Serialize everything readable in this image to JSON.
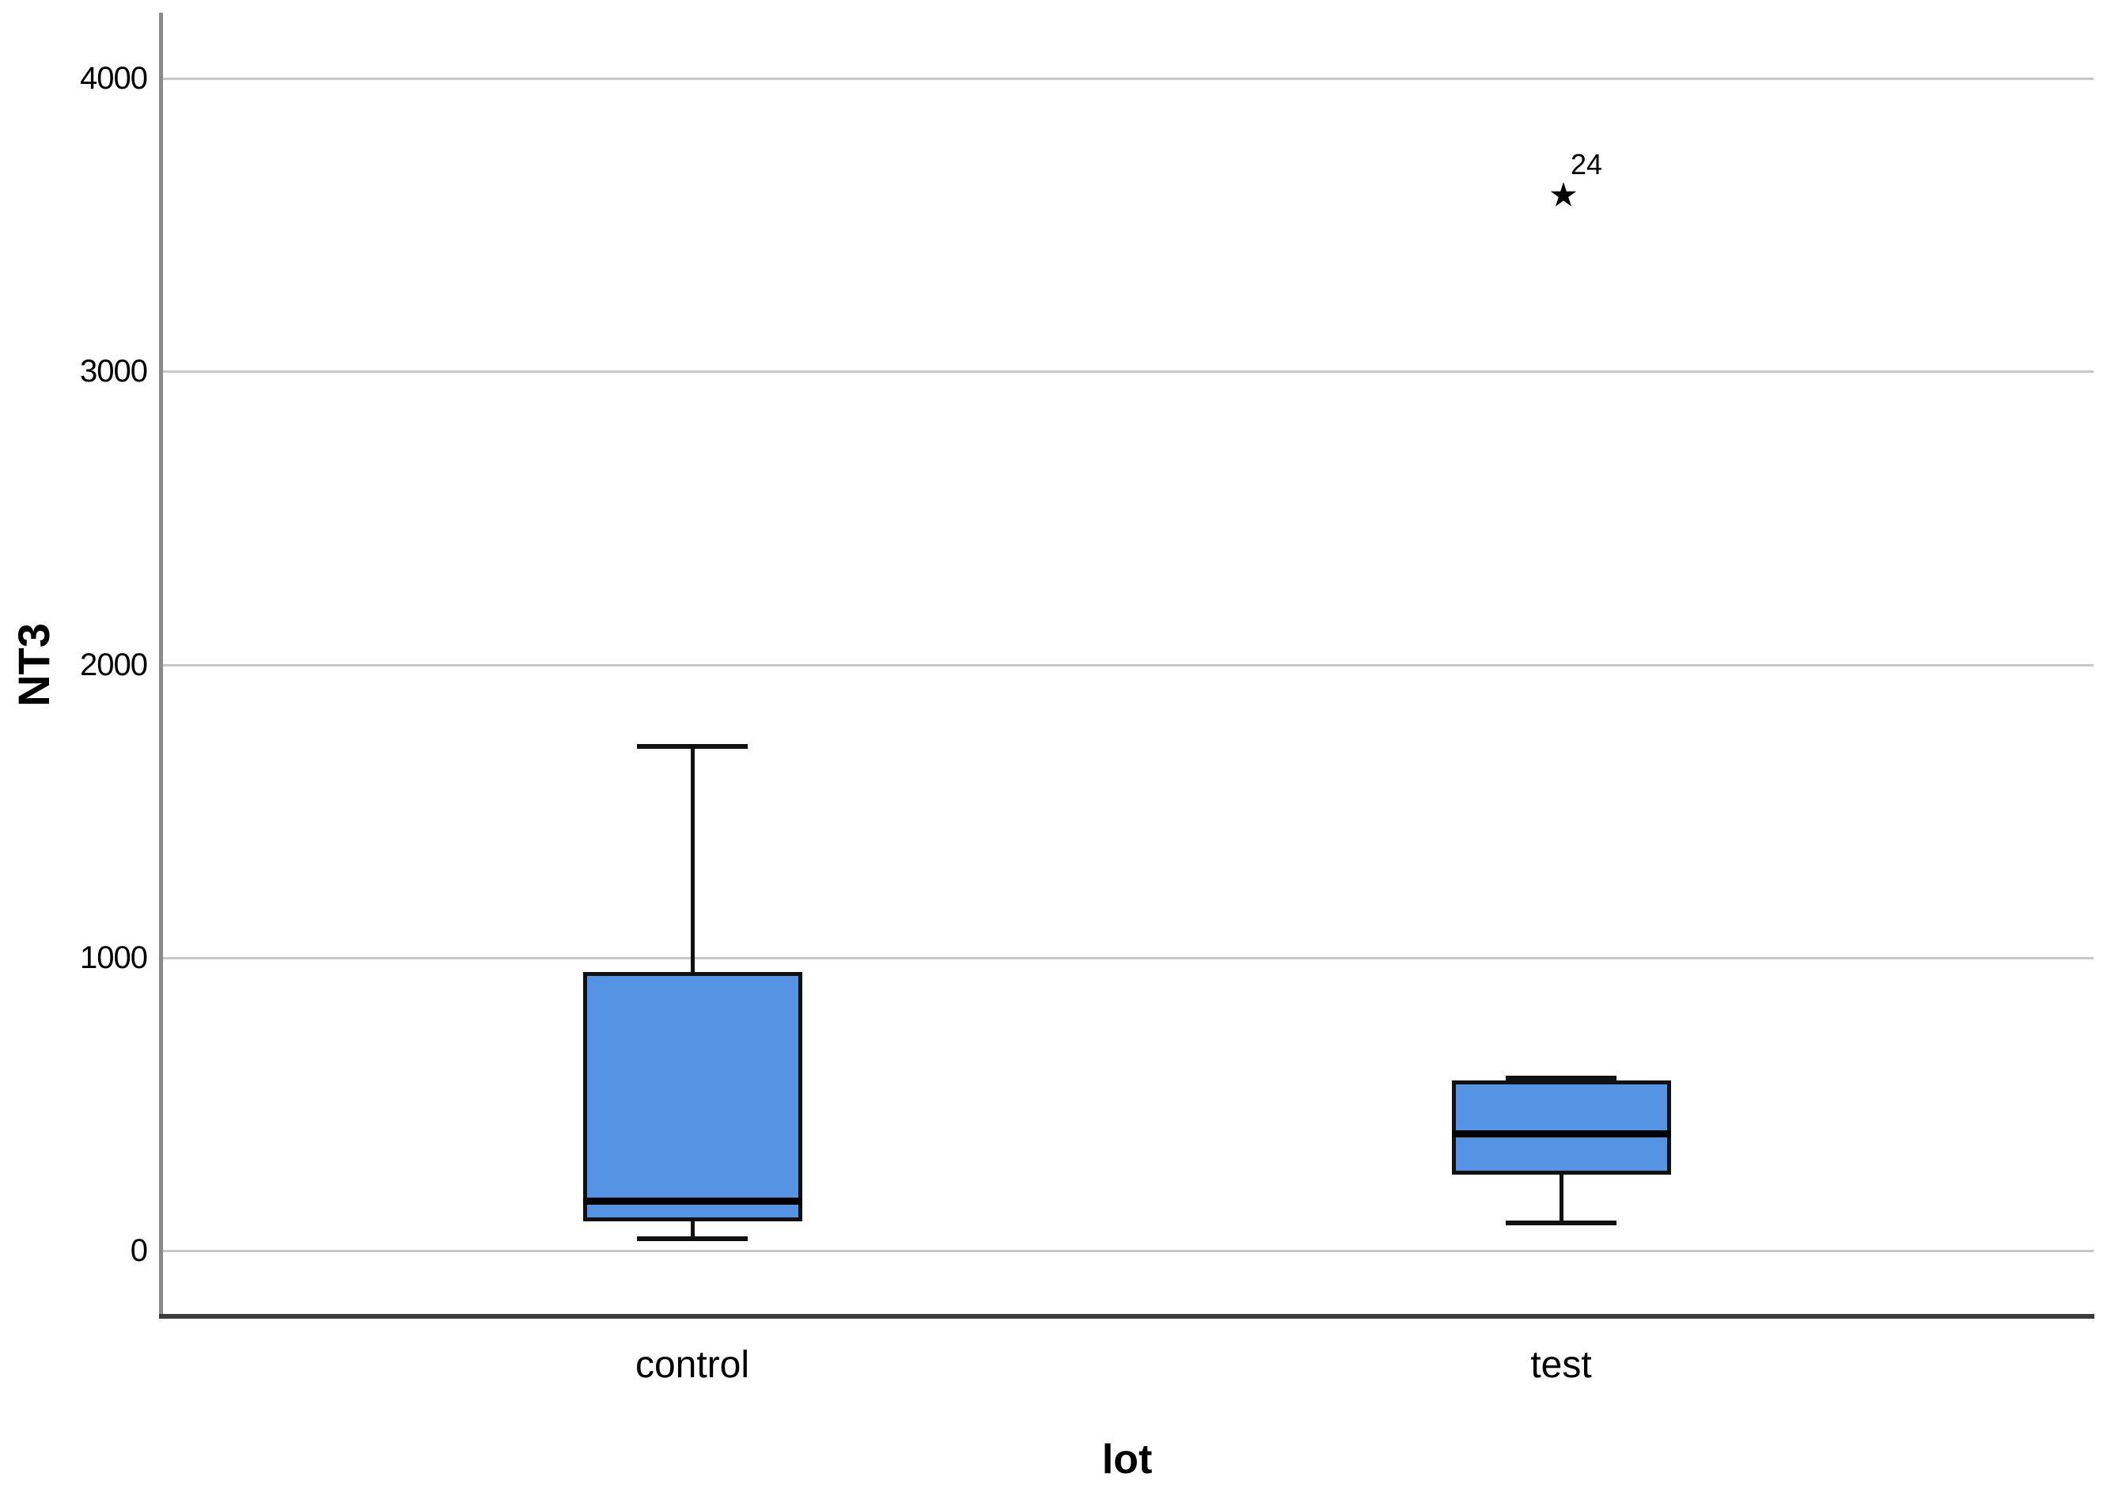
{
  "chart_data": {
    "type": "boxplot",
    "title": "",
    "xlabel": "lot",
    "ylabel": "NT3",
    "categories": [
      "control",
      "test"
    ],
    "ylim": [
      0,
      4000
    ],
    "yticks": [
      0,
      1000,
      2000,
      3000,
      4000
    ],
    "grid": "horizontal",
    "legend": "none",
    "series": [
      {
        "category": "control",
        "whisker_low": 40,
        "q1": 100,
        "median": 170,
        "q3": 950,
        "whisker_high": 1720,
        "outliers": []
      },
      {
        "category": "test",
        "whisker_low": 95,
        "q1": 260,
        "median": 400,
        "q3": 580,
        "whisker_high": 590,
        "outliers": [
          {
            "label": "24",
            "value": 3600,
            "marker": "star"
          }
        ]
      }
    ],
    "colors": {
      "box_fill": "#5594e4",
      "box_stroke": "#111111",
      "median": "#000000",
      "gridline": "#c8c8c8",
      "y_axis_line": "#8a8a8a",
      "x_axis_line": "#3d3d3d",
      "text": "#000000",
      "background": "#ffffff"
    }
  }
}
